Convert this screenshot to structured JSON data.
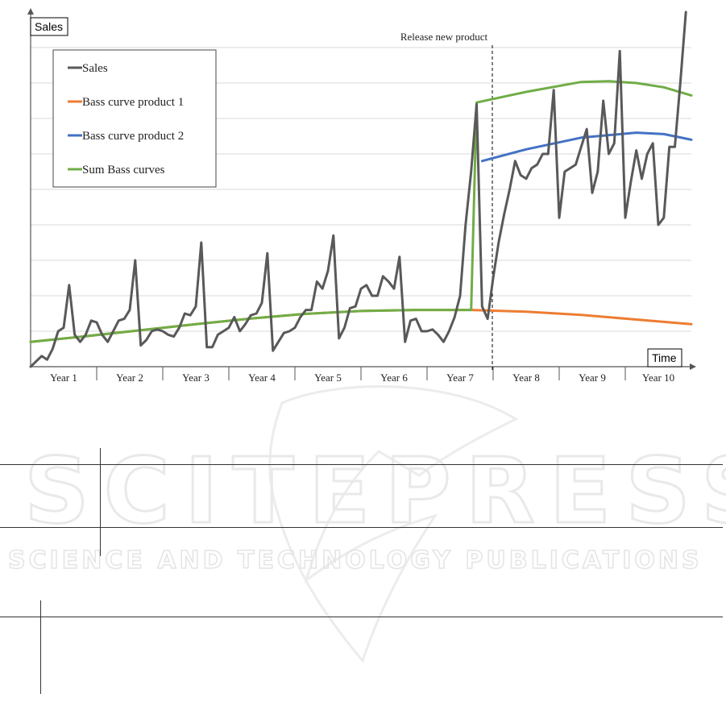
{
  "chart_data": {
    "type": "line",
    "title": "",
    "ylabel": "Sales",
    "xlabel": "Time",
    "grid": true,
    "legend_position": "top-left",
    "x_categories": [
      "Year 1",
      "Year 2",
      "Year 3",
      "Year 4",
      "Year 5",
      "Year 6",
      "Year 7",
      "Year 8",
      "Year 9",
      "Year 10"
    ],
    "x_range_months": [
      0,
      120
    ],
    "y_range": [
      0,
      100
    ],
    "annotation": {
      "label": "Release new product",
      "x_month": 84
    },
    "series": [
      {
        "name": "Sales",
        "color": "#595959",
        "points": [
          [
            0,
            0
          ],
          [
            1,
            1.5
          ],
          [
            2,
            3
          ],
          [
            3,
            2
          ],
          [
            4,
            5
          ],
          [
            5,
            10
          ],
          [
            6,
            11
          ],
          [
            7,
            23
          ],
          [
            8,
            9
          ],
          [
            9,
            7
          ],
          [
            10,
            9
          ],
          [
            11,
            13
          ],
          [
            12,
            12.5
          ],
          [
            13,
            9
          ],
          [
            14,
            7
          ],
          [
            15,
            10
          ],
          [
            16,
            13
          ],
          [
            17,
            13.5
          ],
          [
            18,
            16
          ],
          [
            19,
            30
          ],
          [
            20,
            6
          ],
          [
            21,
            7.5
          ],
          [
            22,
            10
          ],
          [
            23,
            10.5
          ],
          [
            24,
            10
          ],
          [
            25,
            9
          ],
          [
            26,
            8.5
          ],
          [
            27,
            11
          ],
          [
            28,
            15
          ],
          [
            29,
            14.5
          ],
          [
            30,
            17
          ],
          [
            31,
            35
          ],
          [
            32,
            5.5
          ],
          [
            33,
            5.5
          ],
          [
            34,
            9
          ],
          [
            35,
            10
          ],
          [
            36,
            11
          ],
          [
            37,
            14
          ],
          [
            38,
            10
          ],
          [
            39,
            12
          ],
          [
            40,
            14.5
          ],
          [
            41,
            15
          ],
          [
            42,
            18
          ],
          [
            43,
            32
          ],
          [
            44,
            4.5
          ],
          [
            45,
            7
          ],
          [
            46,
            9.5
          ],
          [
            47,
            10
          ],
          [
            48,
            11
          ],
          [
            49,
            14
          ],
          [
            50,
            16
          ],
          [
            51,
            16
          ],
          [
            52,
            24
          ],
          [
            53,
            22
          ],
          [
            54,
            27
          ],
          [
            55,
            37
          ],
          [
            56,
            8
          ],
          [
            57,
            11
          ],
          [
            58,
            16.5
          ],
          [
            59,
            17
          ],
          [
            60,
            22
          ],
          [
            61,
            23
          ],
          [
            62,
            20
          ],
          [
            63,
            20
          ],
          [
            64,
            25.5
          ],
          [
            65,
            24
          ],
          [
            66,
            22
          ],
          [
            67,
            31
          ],
          [
            68,
            7
          ],
          [
            69,
            13
          ],
          [
            70,
            13.5
          ],
          [
            71,
            10
          ],
          [
            72,
            10
          ],
          [
            73,
            10.5
          ],
          [
            74,
            9
          ],
          [
            75,
            7
          ],
          [
            76,
            10
          ],
          [
            77,
            14
          ],
          [
            78,
            20
          ],
          [
            79,
            40
          ],
          [
            80,
            55
          ],
          [
            81,
            74
          ],
          [
            82,
            17
          ],
          [
            83,
            13.5
          ],
          [
            84,
            25
          ],
          [
            85,
            35
          ],
          [
            86,
            43
          ],
          [
            87,
            50
          ],
          [
            88,
            58
          ],
          [
            89,
            54
          ],
          [
            90,
            53
          ],
          [
            91,
            56
          ],
          [
            92,
            57
          ],
          [
            93,
            60
          ],
          [
            94,
            60
          ],
          [
            95,
            78
          ],
          [
            96,
            42
          ],
          [
            97,
            55
          ],
          [
            98,
            56
          ],
          [
            99,
            57
          ],
          [
            100,
            62
          ],
          [
            101,
            67
          ],
          [
            102,
            49
          ],
          [
            103,
            55
          ],
          [
            104,
            75
          ],
          [
            105,
            60
          ],
          [
            106,
            63
          ],
          [
            107,
            89
          ],
          [
            108,
            42
          ],
          [
            109,
            52
          ],
          [
            110,
            61
          ],
          [
            111,
            53
          ],
          [
            112,
            60
          ],
          [
            113,
            63
          ],
          [
            114,
            40
          ],
          [
            115,
            42
          ],
          [
            116,
            62
          ],
          [
            117,
            62
          ],
          [
            118,
            80
          ],
          [
            119,
            100
          ]
        ]
      },
      {
        "name": "Bass curve product 1",
        "color": "#ED7D31",
        "points": [
          [
            0,
            7
          ],
          [
            10,
            8.6
          ],
          [
            20,
            10.3
          ],
          [
            30,
            12
          ],
          [
            40,
            13.6
          ],
          [
            50,
            14.9
          ],
          [
            60,
            15.7
          ],
          [
            70,
            16
          ],
          [
            80,
            16
          ],
          [
            84,
            15.8
          ],
          [
            90,
            15.5
          ],
          [
            100,
            14.6
          ],
          [
            110,
            13.3
          ],
          [
            120,
            12
          ]
        ]
      },
      {
        "name": "Bass curve product 2",
        "color": "#4472C4",
        "points": [
          [
            82,
            58
          ],
          [
            90,
            61.3
          ],
          [
            100,
            64.6
          ],
          [
            110,
            66
          ],
          [
            115,
            65.6
          ],
          [
            120,
            64
          ]
        ]
      },
      {
        "name": "Sum Bass curves",
        "color": "#70AD47",
        "points": [
          [
            0,
            7
          ],
          [
            10,
            8.6
          ],
          [
            20,
            10.3
          ],
          [
            30,
            12
          ],
          [
            40,
            13.6
          ],
          [
            50,
            14.9
          ],
          [
            60,
            15.7
          ],
          [
            70,
            16
          ],
          [
            80,
            16
          ],
          [
            81,
            74.5
          ],
          [
            90,
            77.5
          ],
          [
            100,
            80.3
          ],
          [
            105,
            80.5
          ],
          [
            110,
            80
          ],
          [
            115,
            78.8
          ],
          [
            120,
            76.5
          ]
        ]
      }
    ]
  },
  "watermark": {
    "brand": "SCITEPRESS",
    "tagline": "SCIENCE AND TECHNOLOGY PUBLICATIONS"
  }
}
